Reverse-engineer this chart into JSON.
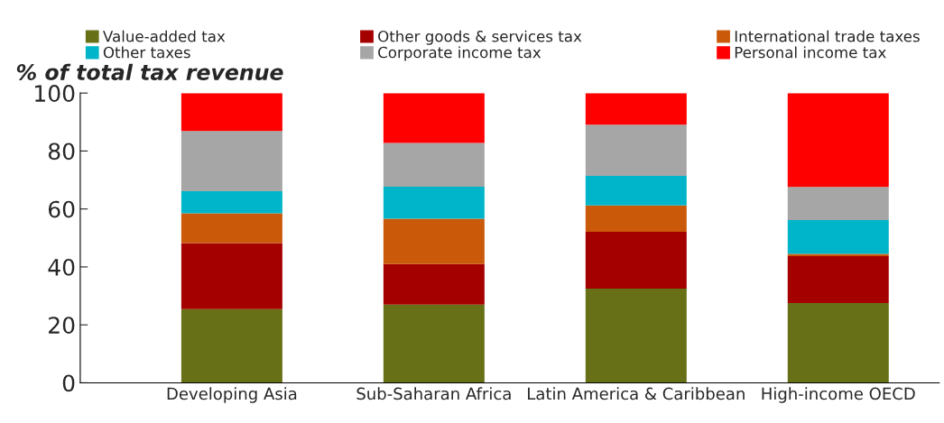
{
  "chart_data": {
    "type": "bar",
    "stacked": true,
    "ylabel": "% of total tax revenue",
    "categories": [
      "Developing Asia",
      "Sub-Saharan Africa",
      "Latin America & Caribbean",
      "High-income OECD"
    ],
    "series": [
      {
        "name": "Value-added tax",
        "color": "#677016",
        "values": [
          25.4,
          27.0,
          32.5,
          27.5
        ]
      },
      {
        "name": "Other goods & services tax",
        "color": "#a50000",
        "values": [
          22.8,
          14.0,
          19.6,
          16.2
        ]
      },
      {
        "name": "International trade taxes",
        "color": "#ca5a0a",
        "values": [
          10.3,
          15.6,
          9.1,
          0.8
        ]
      },
      {
        "name": "Other taxes",
        "color": "#00b5c9",
        "values": [
          7.6,
          11.1,
          10.2,
          11.7
        ]
      },
      {
        "name": "Corporate income tax",
        "color": "#a6a6a6",
        "values": [
          20.8,
          15.1,
          17.7,
          11.4
        ]
      },
      {
        "name": "Personal income tax",
        "color": "#ff0000",
        "values": [
          13.1,
          17.2,
          10.9,
          32.4
        ]
      }
    ],
    "ylim": [
      0,
      100
    ],
    "yticks": [
      0,
      20,
      40,
      60,
      80,
      100
    ],
    "grid": false,
    "legend": "top"
  }
}
